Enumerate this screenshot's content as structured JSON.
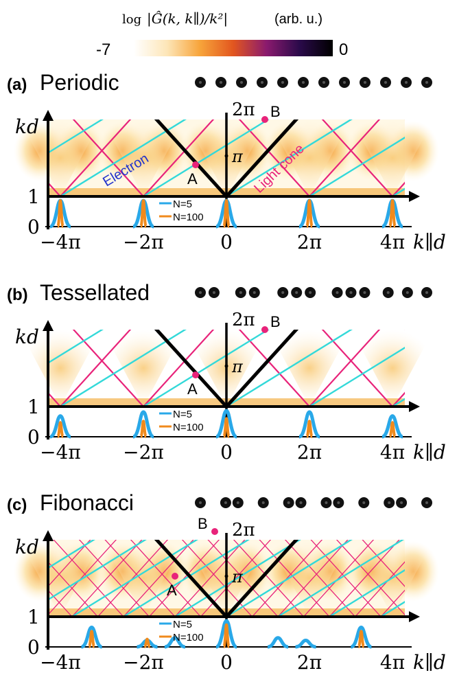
{
  "colorbar": {
    "label_prefix": "log",
    "label_math": "|Ĝ(k, k∥)/k²|",
    "label_unit": "(arb. u.)",
    "min_label": "-7",
    "max_label": "0",
    "colormap": [
      "#ffffff",
      "#fde6b8",
      "#f7a43a",
      "#e2561f",
      "#8a1a6e",
      "#2a0a4a",
      "#000000"
    ]
  },
  "colors": {
    "electron": "#33d9d9",
    "light_cone": "#e8237a",
    "cone_black": "#000000",
    "n5": "#29a8e8",
    "n100": "#f08a1c"
  },
  "chart_data": [
    {
      "type": "heatmap",
      "panel_label": "(a)",
      "title": "Periodic",
      "ylabel": "kd",
      "xlabel": "k∥d",
      "x_ticks": [
        "−4π",
        "−2π",
        "0",
        "2π",
        "4π"
      ],
      "y_ticks": [
        "0",
        "1"
      ],
      "y_annotations": [
        "π",
        "2π"
      ],
      "xlim": [
        -13.2,
        13.2
      ],
      "ylim": [
        0,
        6.5
      ],
      "annotations": [
        "Electron",
        "Light cone"
      ],
      "points": [
        {
          "label": "A",
          "x": -0.9,
          "y": 2.6
        },
        {
          "label": "B",
          "x": 1.0,
          "y": 6.4
        }
      ],
      "atoms": [
        0,
        1,
        2,
        3,
        4,
        5,
        6,
        7,
        8,
        9,
        10,
        11
      ],
      "atoms_n": 12,
      "peaks_n5": [
        {
          "x": -12.566,
          "h": 1.0
        },
        {
          "x": -6.283,
          "h": 1.0
        },
        {
          "x": 0,
          "h": 1.0
        },
        {
          "x": 6.283,
          "h": 1.0
        },
        {
          "x": 12.566,
          "h": 1.0
        }
      ],
      "peaks_n100": [
        {
          "x": -12.566,
          "h": 1.0
        },
        {
          "x": -6.283,
          "h": 1.0
        },
        {
          "x": 0,
          "h": 1.0
        },
        {
          "x": 6.283,
          "h": 1.0
        },
        {
          "x": 12.566,
          "h": 1.0
        }
      ],
      "legend": [
        "N=5",
        "N=100"
      ]
    },
    {
      "type": "heatmap",
      "panel_label": "(b)",
      "title": "Tessellated",
      "ylabel": "kd",
      "xlabel": "k∥d",
      "x_ticks": [
        "−4π",
        "−2π",
        "0",
        "2π",
        "4π"
      ],
      "y_ticks": [
        "0",
        "1"
      ],
      "y_annotations": [
        "π",
        "2π"
      ],
      "xlim": [
        -13.2,
        13.2
      ],
      "ylim": [
        0,
        6.5
      ],
      "points": [
        {
          "label": "A",
          "x": -0.9,
          "y": 2.6
        },
        {
          "label": "B",
          "x": 1.0,
          "y": 6.4
        }
      ],
      "atoms": [
        0,
        0.78,
        2.3,
        3.08,
        4.7,
        5.48,
        6.26,
        7.8,
        8.58,
        9.36,
        10.7,
        11.8,
        12.9
      ],
      "atoms_n": 13,
      "peaks_n5": [
        {
          "x": -12.566,
          "h": 0.8
        },
        {
          "x": -6.283,
          "h": 0.95
        },
        {
          "x": 0,
          "h": 1.0
        },
        {
          "x": 6.283,
          "h": 0.95
        },
        {
          "x": 12.566,
          "h": 0.8
        }
      ],
      "peaks_n100": [
        {
          "x": -12.566,
          "h": 0.55
        },
        {
          "x": -6.283,
          "h": 0.6
        },
        {
          "x": 0,
          "h": 0.7
        },
        {
          "x": 6.283,
          "h": 0.6
        },
        {
          "x": 12.566,
          "h": 0.55
        }
      ],
      "legend": [
        "N=5",
        "N=100"
      ]
    },
    {
      "type": "heatmap",
      "panel_label": "(c)",
      "title": "Fibonacci",
      "ylabel": "kd",
      "xlabel": "k∥d",
      "x_ticks": [
        "−4π",
        "−2π",
        "0",
        "2π",
        "4π"
      ],
      "y_ticks": [
        "0",
        "1"
      ],
      "y_annotations": [
        "π",
        "2π"
      ],
      "xlim": [
        -13.2,
        13.2
      ],
      "ylim": [
        0,
        6.5
      ],
      "points": [
        {
          "label": "A",
          "x": -3.9,
          "y": 3.6
        },
        {
          "label": "B",
          "x": -1.0,
          "y": 6.9
        }
      ],
      "atoms": [
        0,
        1.55,
        2.3,
        3.85,
        5.4,
        6.15,
        7.7,
        8.45,
        10.0,
        11.55,
        12.3,
        13.85
      ],
      "atoms_n": 12,
      "peaks_n5": [
        {
          "x": -10.2,
          "h": 0.75
        },
        {
          "x": -6.0,
          "h": 0.25
        },
        {
          "x": -3.9,
          "h": 0.35
        },
        {
          "x": 0,
          "h": 1.0
        },
        {
          "x": 3.9,
          "h": 0.35
        },
        {
          "x": 6.0,
          "h": 0.25
        },
        {
          "x": 10.2,
          "h": 0.75
        }
      ],
      "peaks_n100": [
        {
          "x": -10.2,
          "h": 0.6
        },
        {
          "x": -6.0,
          "h": 0.3
        },
        {
          "x": 0,
          "h": 0.85
        },
        {
          "x": 10.2,
          "h": 0.6
        }
      ],
      "legend": [
        "N=5",
        "N=100"
      ]
    }
  ]
}
